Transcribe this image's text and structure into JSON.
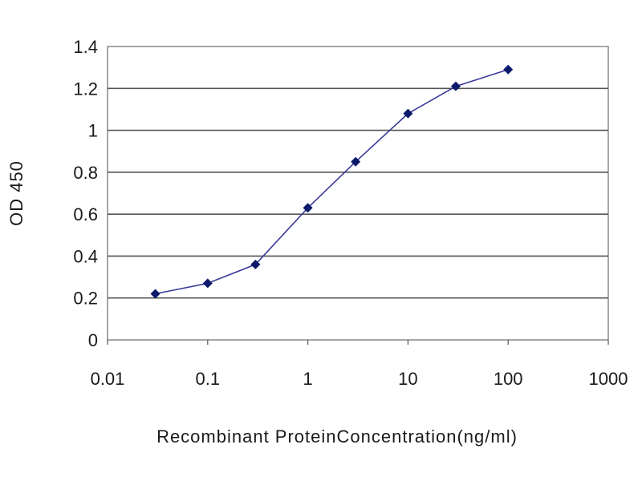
{
  "chart_data": {
    "type": "line",
    "title": "",
    "xlabel": "Recombinant ProteinConcentration(ng/ml)",
    "ylabel": "OD 450",
    "x_scale": "log",
    "xlim": [
      0.01,
      1000
    ],
    "ylim": [
      0,
      1.4
    ],
    "x_ticks": [
      "0.01",
      "0.1",
      "1",
      "10",
      "100",
      "1000"
    ],
    "y_ticks": [
      "0",
      "0.2",
      "0.4",
      "0.6",
      "0.8",
      "1",
      "1.2",
      "1.4"
    ],
    "grid": "horizontal",
    "legend": "none",
    "series": [
      {
        "color": "#3a3a9a",
        "marker_color": "#0c1a6b",
        "x": [
          0.03,
          0.1,
          0.3,
          1,
          3,
          10,
          30,
          100
        ],
        "y": [
          0.22,
          0.27,
          0.36,
          0.63,
          0.85,
          1.08,
          1.21,
          1.29
        ]
      }
    ]
  }
}
